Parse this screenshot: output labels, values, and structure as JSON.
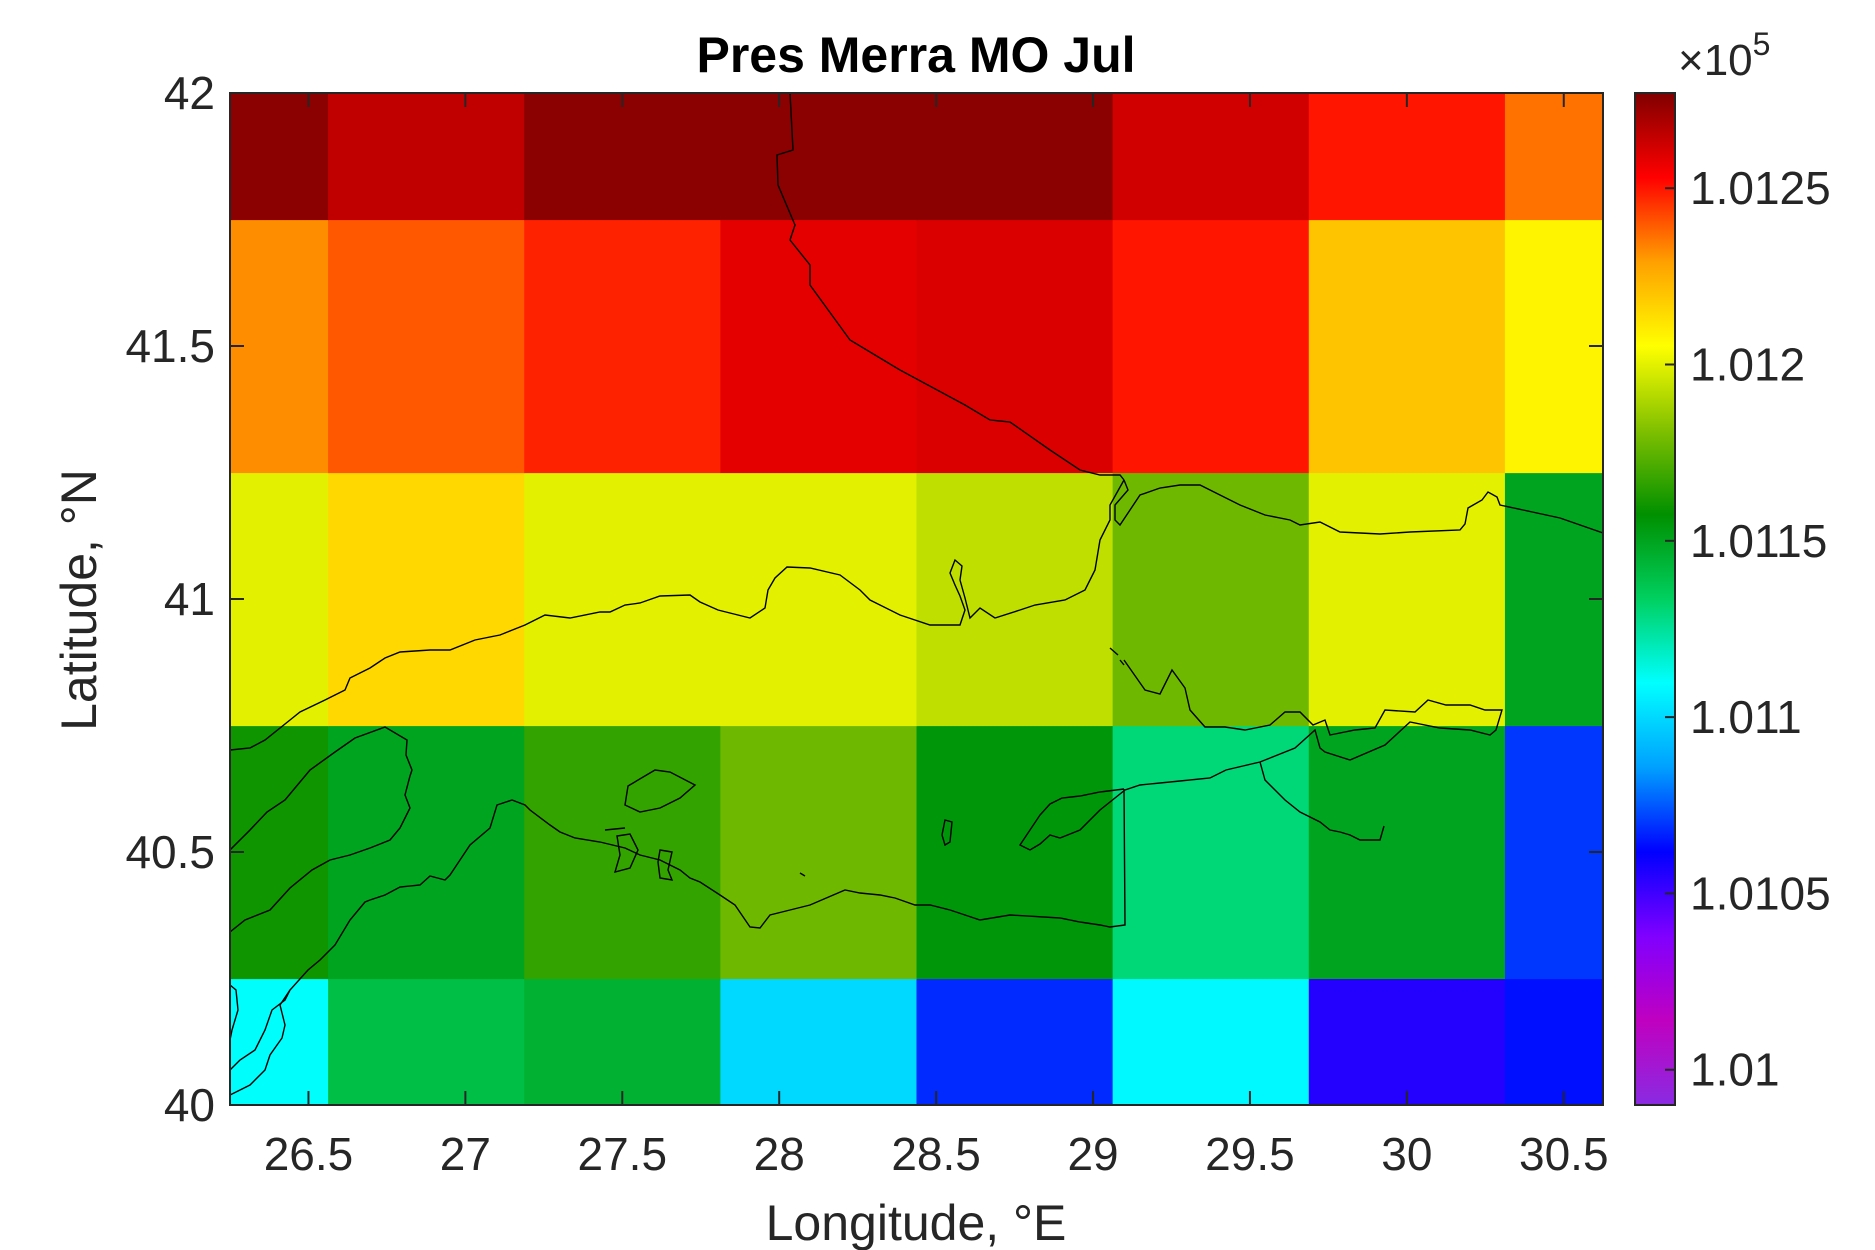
{
  "chart_data": {
    "type": "heatmap",
    "title": "Pres Merra MO Jul",
    "xlabel": "Longitude, °E",
    "ylabel": "Latitude, °N",
    "xlim": [
      26.25,
      30.625
    ],
    "ylim": [
      40,
      42
    ],
    "x_ticks": [
      "26.5",
      "27",
      "27.5",
      "28",
      "28.5",
      "29",
      "29.5",
      "30",
      "30.5"
    ],
    "y_ticks": [
      "40",
      "40.5",
      "41",
      "41.5",
      "42"
    ],
    "col_edges": [
      26.25,
      26.5625,
      27.1875,
      27.8125,
      28.4375,
      29.0625,
      29.6875,
      30.3125,
      30.625
    ],
    "row_edges": [
      40,
      40.25,
      40.75,
      41.25,
      41.75,
      42
    ],
    "grid": false,
    "values": [
      [
        101110,
        101140,
        101145,
        101100,
        101068,
        101108,
        101055,
        101064
      ],
      [
        101160,
        101150,
        101167,
        101178,
        101155,
        101130,
        101150,
        101070
      ],
      [
        101200,
        101215,
        101200,
        101200,
        101193,
        101178,
        101200,
        101150
      ],
      [
        101232,
        101240,
        101248,
        101258,
        101260,
        101250,
        101220,
        101208
      ],
      [
        101275,
        101265,
        101275,
        101275,
        101275,
        101262,
        101250,
        101236
      ]
    ],
    "colorbar": {
      "range": [
        100990,
        101277
      ],
      "ticks": [
        101000,
        101050,
        101100,
        101150,
        101200,
        101250
      ],
      "tick_labels": [
        "1.01",
        "1.0105",
        "1.011",
        "1.0115",
        "1.012",
        "1.0125"
      ],
      "exponent_base": "×10",
      "exponent_power": "5",
      "colormap": [
        "#8A2BE2",
        "#C000C0",
        "#8000FF",
        "#0000FF",
        "#00A0FF",
        "#00FFFF",
        "#00D060",
        "#009000",
        "#80C000",
        "#FFFF00",
        "#FFA000",
        "#FF0000",
        "#800000"
      ]
    }
  }
}
